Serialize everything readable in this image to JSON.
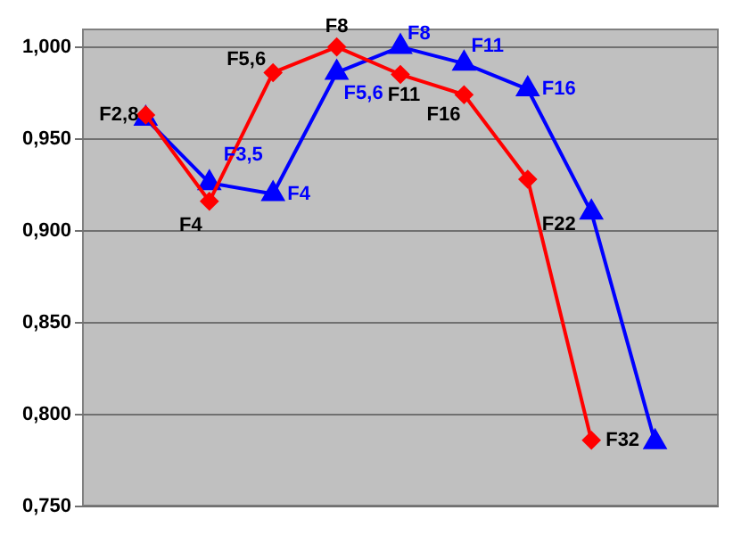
{
  "chart_data": {
    "type": "line",
    "categories": [
      null,
      null,
      null,
      null,
      null,
      null,
      null,
      null,
      null,
      null,
      null
    ],
    "series": [
      {
        "name": null,
        "color": "#ff0000",
        "marker": "diamond",
        "values": [
          null,
          0.963,
          0.916,
          0.986,
          1.0,
          0.985,
          0.974,
          0.928,
          0.786,
          null,
          null
        ],
        "value_labels": [
          null,
          "F2,8",
          "F4",
          "F5,6",
          "F8",
          "F11",
          "F16",
          "F22",
          "F32",
          null,
          null
        ]
      },
      {
        "name": null,
        "color": "#0000ff",
        "marker": "triangle",
        "values": [
          null,
          0.961,
          0.926,
          0.92,
          0.986,
          1.0,
          0.991,
          0.977,
          0.91,
          0.785,
          null
        ],
        "value_labels": [
          null,
          null,
          "F3,5",
          "F4",
          "F5,6",
          "F8",
          "F11",
          "F16",
          null,
          null,
          null
        ]
      }
    ],
    "ylim": [
      0.75,
      1.01
    ],
    "yticks": [
      {
        "value": 0.75,
        "label": "0,750"
      },
      {
        "value": 0.8,
        "label": "0,800"
      },
      {
        "value": 0.85,
        "label": "0,850"
      },
      {
        "value": 0.9,
        "label": "0,900"
      },
      {
        "value": 0.95,
        "label": "0,950"
      },
      {
        "value": 1.0,
        "label": "1,000"
      }
    ],
    "grid": "y",
    "tick_labels": "y",
    "legend": false
  }
}
